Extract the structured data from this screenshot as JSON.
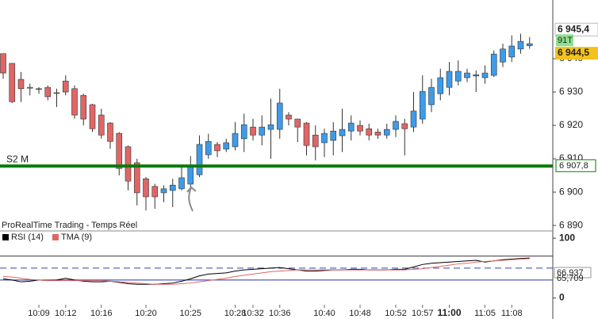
{
  "chart_data": [
    {
      "type": "candlestick",
      "title": "ProRealTime Trading - Temps Réel",
      "categories": [
        null,
        null,
        null,
        null,
        "10:09",
        null,
        null,
        "10:12",
        null,
        null,
        null,
        "10:16",
        null,
        null,
        null,
        null,
        "10:20",
        null,
        null,
        null,
        null,
        "10:25",
        null,
        null,
        null,
        null,
        "10:28",
        null,
        "10:32",
        null,
        null,
        "10:36",
        null,
        null,
        null,
        null,
        "10:40",
        null,
        null,
        null,
        "10:48",
        null,
        null,
        null,
        "10:52",
        null,
        null,
        "10:57",
        null,
        null,
        "11:00",
        null,
        null,
        null,
        "11:05",
        null,
        null,
        "11:08",
        null,
        null
      ],
      "open": [
        6941.5,
        6938.6,
        6933.8,
        6931.4,
        6931,
        6931.4,
        6929.8,
        6933.3,
        6931,
        6929,
        6926.2,
        6923.1,
        6920.7,
        6917.6,
        6913.6,
        6908.8,
        6904,
        6901.7,
        6899.8,
        6900.5,
        6901,
        6902.4,
        6905.2,
        6911.2,
        6914.3,
        6912.9,
        6913.6,
        6916,
        6919.5,
        6917.1,
        6918.8,
        6918.8,
        6923.1,
        6921.9,
        6920.7,
        6917.1,
        6914.8,
        6915.5,
        6916.9,
        6918.3,
        6920,
        6919,
        6918,
        6917.1,
        6918.8,
        6920.5,
        6919.5,
        6921.9,
        6926.2,
        6929.5,
        6931.4,
        6933.3,
        6934.3,
        6934.8,
        6934.3,
        6935,
        6939,
        6940.5,
        6942.9,
        6943.9
      ],
      "high": [
        6941.5,
        6938.6,
        6936,
        6932.5,
        6931.5,
        6932,
        6931,
        6935,
        6932,
        6929.5,
        6926.5,
        6925,
        6921,
        6918,
        6914,
        6910,
        6904.5,
        6902.5,
        6902,
        6904,
        6908,
        6910.8,
        6917,
        6917.5,
        6915,
        6916,
        6921,
        6923.5,
        6922,
        6923,
        6928,
        6931,
        6924,
        6922,
        6921,
        6920,
        6919,
        6921,
        6925,
        6923,
        6921.5,
        6920.5,
        6919,
        6920.5,
        6923,
        6922,
        6930,
        6935,
        6934,
        6937,
        6939,
        6939.5,
        6937,
        6936.5,
        6938,
        6942.5,
        6944.5,
        6947,
        6947.5,
        6946.5
      ],
      "low": [
        6934,
        6926.7,
        6927,
        6929,
        6929.5,
        6927.5,
        6925.5,
        6929,
        6922,
        6920,
        6918,
        6916,
        6913,
        6905,
        6900.5,
        6896,
        6894.5,
        6895,
        6897,
        6895.5,
        6900.5,
        6901.5,
        6904.5,
        6910,
        6910.5,
        6912,
        6912.5,
        6912,
        6915.5,
        6914,
        6910,
        6916,
        6920,
        6915,
        6911,
        6909.5,
        6910.5,
        6911,
        6912,
        6915.5,
        6917,
        6915.5,
        6916,
        6916,
        6916.5,
        6911,
        6918,
        6920.5,
        6924,
        6927.5,
        6929,
        6932,
        6933,
        6930,
        6932.5,
        6934.5,
        6937.5,
        6939,
        6941.5,
        6943
      ],
      "close": [
        6935.7,
        6927.1,
        6931,
        6931.2,
        6930.8,
        6928.6,
        6929.6,
        6930,
        6923.1,
        6921.9,
        6919,
        6917.1,
        6915.2,
        6907.1,
        6903.3,
        6899.8,
        6898.6,
        6898.6,
        6901,
        6902.1,
        6904.3,
        6907.6,
        6914.3,
        6915.2,
        6912.4,
        6914.8,
        6917.6,
        6920.2,
        6917.1,
        6919.5,
        6920.2,
        6926.7,
        6921.9,
        6919.5,
        6914,
        6913.6,
        6917.6,
        6918.3,
        6918.8,
        6920.7,
        6918.3,
        6917.1,
        6917.1,
        6918.8,
        6921.2,
        6919,
        6924.3,
        6930.2,
        6931.4,
        6934.3,
        6936.2,
        6936.2,
        6935.7,
        6935.2,
        6935.7,
        6941.4,
        6942.9,
        6943.8,
        6945.2,
        6944.5
      ],
      "up_color": "#3d9be9",
      "down_color": "#e06666",
      "ylim": [
        6888.6,
        6957.6
      ],
      "yticks": [
        {
          "value": 6890,
          "label": "6 890"
        },
        {
          "value": 6900,
          "label": "6 900"
        },
        {
          "value": 6910,
          "label": "6 910"
        },
        {
          "value": 6920,
          "label": "6 920"
        },
        {
          "value": 6930,
          "label": "6 930"
        },
        {
          "value": 6940,
          "label": "6 940"
        }
      ],
      "interval_label": "91T",
      "price_tags": [
        {
          "value": 6945.4,
          "label": "6 945,4",
          "color": "#ffffff"
        },
        {
          "value": 6944.5,
          "label": "6 944,5",
          "color": "#f3c21b"
        }
      ],
      "level": {
        "name": "S2 M",
        "value": 6907.8,
        "label": "6 907,8",
        "color": "#0a7a0a"
      }
    },
    {
      "type": "line",
      "series": [
        {
          "name": "RSI (14)",
          "color": "#000000",
          "values": [
            32,
            30,
            27,
            28,
            30,
            29,
            30,
            33,
            30,
            28,
            27,
            27,
            28,
            26,
            24,
            23,
            23,
            23,
            24,
            25,
            28,
            32,
            37,
            40,
            41,
            42,
            45,
            47,
            48,
            49,
            50,
            51,
            49,
            47,
            45,
            45,
            46,
            47,
            47,
            48,
            48,
            47,
            47,
            47,
            48,
            48,
            52,
            56,
            58,
            59,
            60,
            61,
            62,
            63,
            60,
            62,
            64,
            65,
            66,
            66.937
          ],
          "last_label": "66,937"
        },
        {
          "name": "TMA (9)",
          "color": "#e06666",
          "values": [
            36,
            35,
            33,
            31,
            30,
            29,
            29,
            29,
            29,
            29,
            29,
            29,
            28,
            27,
            26,
            25,
            24,
            23,
            23,
            23,
            24,
            25,
            27,
            29,
            31,
            33,
            36,
            38,
            40,
            42,
            44,
            45,
            46,
            47,
            47,
            47,
            47,
            47,
            47,
            47,
            47,
            47,
            47,
            47,
            47,
            47,
            48,
            49,
            51,
            53,
            55,
            57,
            58,
            60,
            61,
            62,
            63,
            64,
            65,
            65.709
          ],
          "last_label": "65,709"
        }
      ],
      "ylim": [
        -35.1,
        110.8
      ],
      "yticks": [
        0,
        100
      ],
      "levels": [
        70,
        50,
        30
      ]
    }
  ]
}
